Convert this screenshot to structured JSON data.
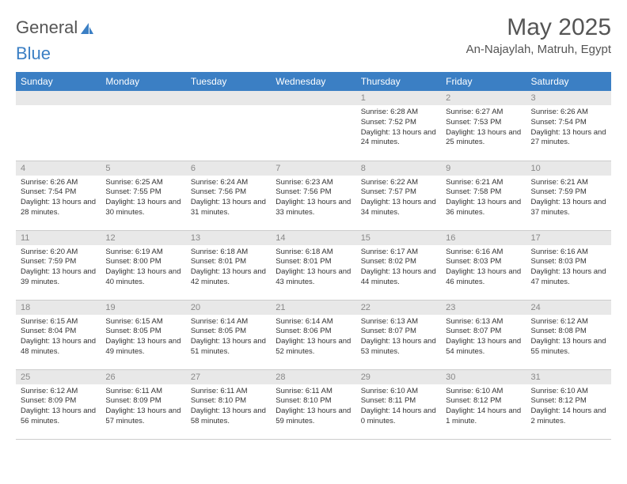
{
  "brand": {
    "part1": "General",
    "part2": "Blue"
  },
  "title": "May 2025",
  "location": "An-Najaylah, Matruh, Egypt",
  "colors": {
    "header_bg": "#3b7fc4",
    "header_text": "#ffffff",
    "daynum_bg": "#e8e8e8",
    "daynum_text": "#888888",
    "body_text": "#333333",
    "border": "#cccccc"
  },
  "weekdays": [
    "Sunday",
    "Monday",
    "Tuesday",
    "Wednesday",
    "Thursday",
    "Friday",
    "Saturday"
  ],
  "weeks": [
    [
      null,
      null,
      null,
      null,
      {
        "n": "1",
        "sr": "Sunrise: 6:28 AM",
        "ss": "Sunset: 7:52 PM",
        "dl": "Daylight: 13 hours and 24 minutes."
      },
      {
        "n": "2",
        "sr": "Sunrise: 6:27 AM",
        "ss": "Sunset: 7:53 PM",
        "dl": "Daylight: 13 hours and 25 minutes."
      },
      {
        "n": "3",
        "sr": "Sunrise: 6:26 AM",
        "ss": "Sunset: 7:54 PM",
        "dl": "Daylight: 13 hours and 27 minutes."
      }
    ],
    [
      {
        "n": "4",
        "sr": "Sunrise: 6:26 AM",
        "ss": "Sunset: 7:54 PM",
        "dl": "Daylight: 13 hours and 28 minutes."
      },
      {
        "n": "5",
        "sr": "Sunrise: 6:25 AM",
        "ss": "Sunset: 7:55 PM",
        "dl": "Daylight: 13 hours and 30 minutes."
      },
      {
        "n": "6",
        "sr": "Sunrise: 6:24 AM",
        "ss": "Sunset: 7:56 PM",
        "dl": "Daylight: 13 hours and 31 minutes."
      },
      {
        "n": "7",
        "sr": "Sunrise: 6:23 AM",
        "ss": "Sunset: 7:56 PM",
        "dl": "Daylight: 13 hours and 33 minutes."
      },
      {
        "n": "8",
        "sr": "Sunrise: 6:22 AM",
        "ss": "Sunset: 7:57 PM",
        "dl": "Daylight: 13 hours and 34 minutes."
      },
      {
        "n": "9",
        "sr": "Sunrise: 6:21 AM",
        "ss": "Sunset: 7:58 PM",
        "dl": "Daylight: 13 hours and 36 minutes."
      },
      {
        "n": "10",
        "sr": "Sunrise: 6:21 AM",
        "ss": "Sunset: 7:59 PM",
        "dl": "Daylight: 13 hours and 37 minutes."
      }
    ],
    [
      {
        "n": "11",
        "sr": "Sunrise: 6:20 AM",
        "ss": "Sunset: 7:59 PM",
        "dl": "Daylight: 13 hours and 39 minutes."
      },
      {
        "n": "12",
        "sr": "Sunrise: 6:19 AM",
        "ss": "Sunset: 8:00 PM",
        "dl": "Daylight: 13 hours and 40 minutes."
      },
      {
        "n": "13",
        "sr": "Sunrise: 6:18 AM",
        "ss": "Sunset: 8:01 PM",
        "dl": "Daylight: 13 hours and 42 minutes."
      },
      {
        "n": "14",
        "sr": "Sunrise: 6:18 AM",
        "ss": "Sunset: 8:01 PM",
        "dl": "Daylight: 13 hours and 43 minutes."
      },
      {
        "n": "15",
        "sr": "Sunrise: 6:17 AM",
        "ss": "Sunset: 8:02 PM",
        "dl": "Daylight: 13 hours and 44 minutes."
      },
      {
        "n": "16",
        "sr": "Sunrise: 6:16 AM",
        "ss": "Sunset: 8:03 PM",
        "dl": "Daylight: 13 hours and 46 minutes."
      },
      {
        "n": "17",
        "sr": "Sunrise: 6:16 AM",
        "ss": "Sunset: 8:03 PM",
        "dl": "Daylight: 13 hours and 47 minutes."
      }
    ],
    [
      {
        "n": "18",
        "sr": "Sunrise: 6:15 AM",
        "ss": "Sunset: 8:04 PM",
        "dl": "Daylight: 13 hours and 48 minutes."
      },
      {
        "n": "19",
        "sr": "Sunrise: 6:15 AM",
        "ss": "Sunset: 8:05 PM",
        "dl": "Daylight: 13 hours and 49 minutes."
      },
      {
        "n": "20",
        "sr": "Sunrise: 6:14 AM",
        "ss": "Sunset: 8:05 PM",
        "dl": "Daylight: 13 hours and 51 minutes."
      },
      {
        "n": "21",
        "sr": "Sunrise: 6:14 AM",
        "ss": "Sunset: 8:06 PM",
        "dl": "Daylight: 13 hours and 52 minutes."
      },
      {
        "n": "22",
        "sr": "Sunrise: 6:13 AM",
        "ss": "Sunset: 8:07 PM",
        "dl": "Daylight: 13 hours and 53 minutes."
      },
      {
        "n": "23",
        "sr": "Sunrise: 6:13 AM",
        "ss": "Sunset: 8:07 PM",
        "dl": "Daylight: 13 hours and 54 minutes."
      },
      {
        "n": "24",
        "sr": "Sunrise: 6:12 AM",
        "ss": "Sunset: 8:08 PM",
        "dl": "Daylight: 13 hours and 55 minutes."
      }
    ],
    [
      {
        "n": "25",
        "sr": "Sunrise: 6:12 AM",
        "ss": "Sunset: 8:09 PM",
        "dl": "Daylight: 13 hours and 56 minutes."
      },
      {
        "n": "26",
        "sr": "Sunrise: 6:11 AM",
        "ss": "Sunset: 8:09 PM",
        "dl": "Daylight: 13 hours and 57 minutes."
      },
      {
        "n": "27",
        "sr": "Sunrise: 6:11 AM",
        "ss": "Sunset: 8:10 PM",
        "dl": "Daylight: 13 hours and 58 minutes."
      },
      {
        "n": "28",
        "sr": "Sunrise: 6:11 AM",
        "ss": "Sunset: 8:10 PM",
        "dl": "Daylight: 13 hours and 59 minutes."
      },
      {
        "n": "29",
        "sr": "Sunrise: 6:10 AM",
        "ss": "Sunset: 8:11 PM",
        "dl": "Daylight: 14 hours and 0 minutes."
      },
      {
        "n": "30",
        "sr": "Sunrise: 6:10 AM",
        "ss": "Sunset: 8:12 PM",
        "dl": "Daylight: 14 hours and 1 minute."
      },
      {
        "n": "31",
        "sr": "Sunrise: 6:10 AM",
        "ss": "Sunset: 8:12 PM",
        "dl": "Daylight: 14 hours and 2 minutes."
      }
    ]
  ]
}
